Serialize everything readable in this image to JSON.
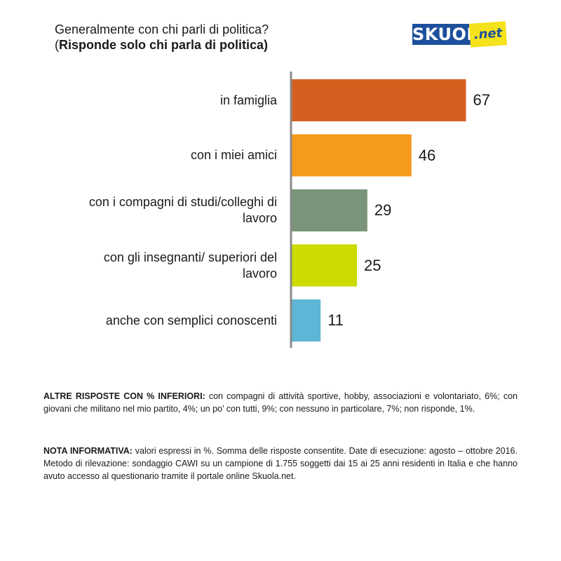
{
  "title_line1": "Generalmente con chi parli di politica?",
  "title_line2_open": "(",
  "title_line2_bold": "Risponde solo chi parla di politica)",
  "logo": {
    "main": "SKUOLa",
    "suffix": ".net",
    "blue": "#1d4f9c",
    "yellow": "#f4e21c"
  },
  "chart_data": {
    "type": "bar",
    "orientation": "horizontal",
    "categories": [
      "in famiglia",
      "con i miei amici",
      "con i compagni di studi/colleghi di lavoro",
      "con gli insegnanti/ superiori del lavoro",
      "anche con semplici conoscenti"
    ],
    "category_lines": [
      [
        "in famiglia"
      ],
      [
        "con i miei amici"
      ],
      [
        "con i compagni di studi/colleghi di",
        "lavoro"
      ],
      [
        "con gli insegnanti/ superiori del",
        "lavoro"
      ],
      [
        "anche con semplici conoscenti"
      ]
    ],
    "values": [
      67,
      46,
      29,
      25,
      11
    ],
    "colors": [
      "#d55f1e",
      "#f59a1b",
      "#7a9479",
      "#ccdb00",
      "#5db6d5"
    ],
    "xlim": [
      0,
      67
    ],
    "grid": false,
    "axis_color": "#8a8a8a"
  },
  "notes": {
    "altre_label": "ALTRE RISPOSTE CON % INFERIORI:",
    "altre_text": " con compagni di attività sportive, hobby, associazioni e volontariato, 6%; con giovani che militano nel mio partito, 4%; un po’ con tutti, 9%; con nessuno in particolare, 7%; non risponde, 1%.",
    "nota_label": "NOTA INFORMATIVA:",
    "nota_text": " valori espressi in %. Somma delle risposte consentite. Date di esecuzione: agosto – ottobre 2016. Metodo di rilevazione: sondaggio CAWI su un campione di 1.755 soggetti dai 15 ai 25 anni residenti in Italia e che hanno avuto accesso al questionario tramite il portale online Skuola.net."
  }
}
